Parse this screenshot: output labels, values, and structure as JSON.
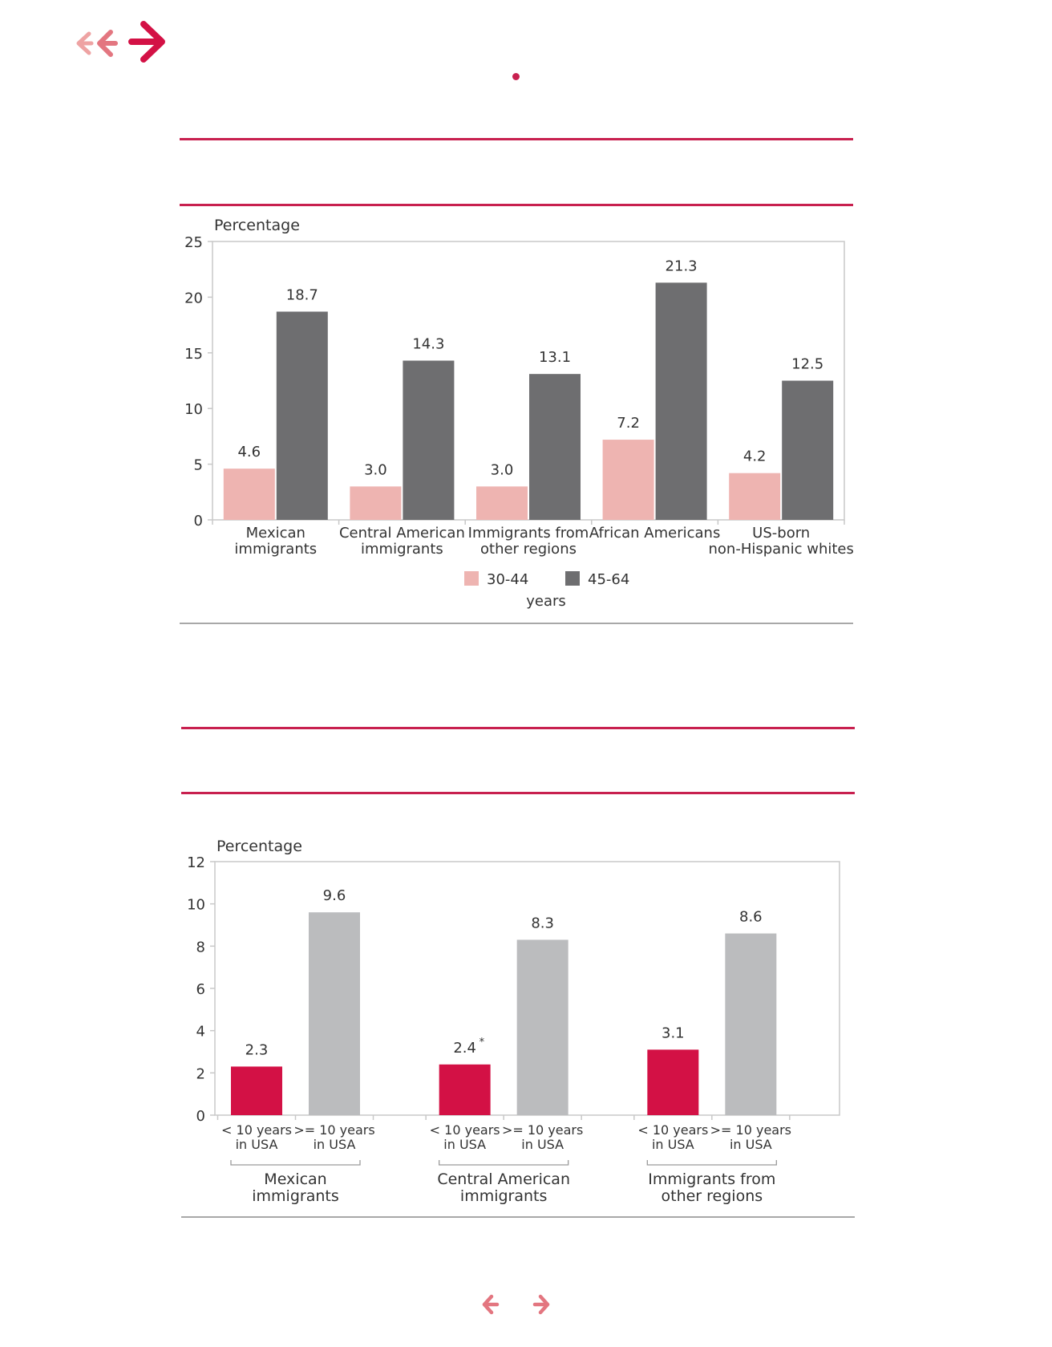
{
  "nav": {
    "top_arrows": [
      "back-small-icon",
      "back-icon",
      "forward-large-icon"
    ],
    "bottom_arrows": [
      "prev-page-icon",
      "next-page-icon"
    ]
  },
  "colors": {
    "accent": "#c8204f",
    "pink": "#eeb4b1",
    "dark_gray": "#6e6e70",
    "light_gray": "#bbbcbe",
    "crimson": "#d31145"
  },
  "chart_data": [
    {
      "type": "bar",
      "ylabel": "Percentage",
      "ylim": [
        0,
        25
      ],
      "yticks": [
        0,
        5,
        10,
        15,
        20,
        25
      ],
      "categories": [
        [
          "Mexican",
          "immigrants"
        ],
        [
          "Central American",
          "immigrants"
        ],
        [
          "Immigrants from",
          "other regions"
        ],
        [
          "African Americans"
        ],
        [
          "US-born",
          "non-Hispanic whites"
        ]
      ],
      "series": [
        {
          "name": "30-44",
          "color": "#eeb4b1",
          "values": [
            4.6,
            3.0,
            3.0,
            7.2,
            4.2
          ],
          "labels": [
            "4.6",
            "3.0",
            "3.0",
            "7.2",
            "4.2"
          ]
        },
        {
          "name": "45-64",
          "color": "#6e6e70",
          "values": [
            18.7,
            14.3,
            13.1,
            21.3,
            12.5
          ],
          "labels": [
            "18.7",
            "14.3",
            "13.1",
            "21.3",
            "12.5"
          ]
        }
      ],
      "legend_unit": "years",
      "legend_position": "bottom"
    },
    {
      "type": "bar",
      "ylabel": "Percentage",
      "ylim": [
        0,
        12
      ],
      "yticks": [
        0,
        2,
        4,
        6,
        8,
        10,
        12
      ],
      "groups": [
        {
          "name": [
            "Mexican",
            "immigrants"
          ],
          "bars": [
            {
              "label": [
                "< 10 years",
                "in USA"
              ],
              "value": 2.3,
              "text": "2.3",
              "note": "",
              "color": "#d31145"
            },
            {
              "label": [
                ">= 10 years",
                "in USA"
              ],
              "value": 9.6,
              "text": "9.6",
              "note": "",
              "color": "#bbbcbe"
            }
          ]
        },
        {
          "name": [
            "Central American",
            "immigrants"
          ],
          "bars": [
            {
              "label": [
                "< 10 years",
                "in USA"
              ],
              "value": 2.4,
              "text": "2.4",
              "note": "*",
              "color": "#d31145"
            },
            {
              "label": [
                ">= 10 years",
                "in USA"
              ],
              "value": 8.3,
              "text": "8.3",
              "note": "",
              "color": "#bbbcbe"
            }
          ]
        },
        {
          "name": [
            "Immigrants from",
            "other regions"
          ],
          "bars": [
            {
              "label": [
                "< 10 years",
                "in USA"
              ],
              "value": 3.1,
              "text": "3.1",
              "note": "",
              "color": "#d31145"
            },
            {
              "label": [
                ">= 10 years",
                "in USA"
              ],
              "value": 8.6,
              "text": "8.6",
              "note": "",
              "color": "#bbbcbe"
            }
          ]
        }
      ]
    }
  ]
}
